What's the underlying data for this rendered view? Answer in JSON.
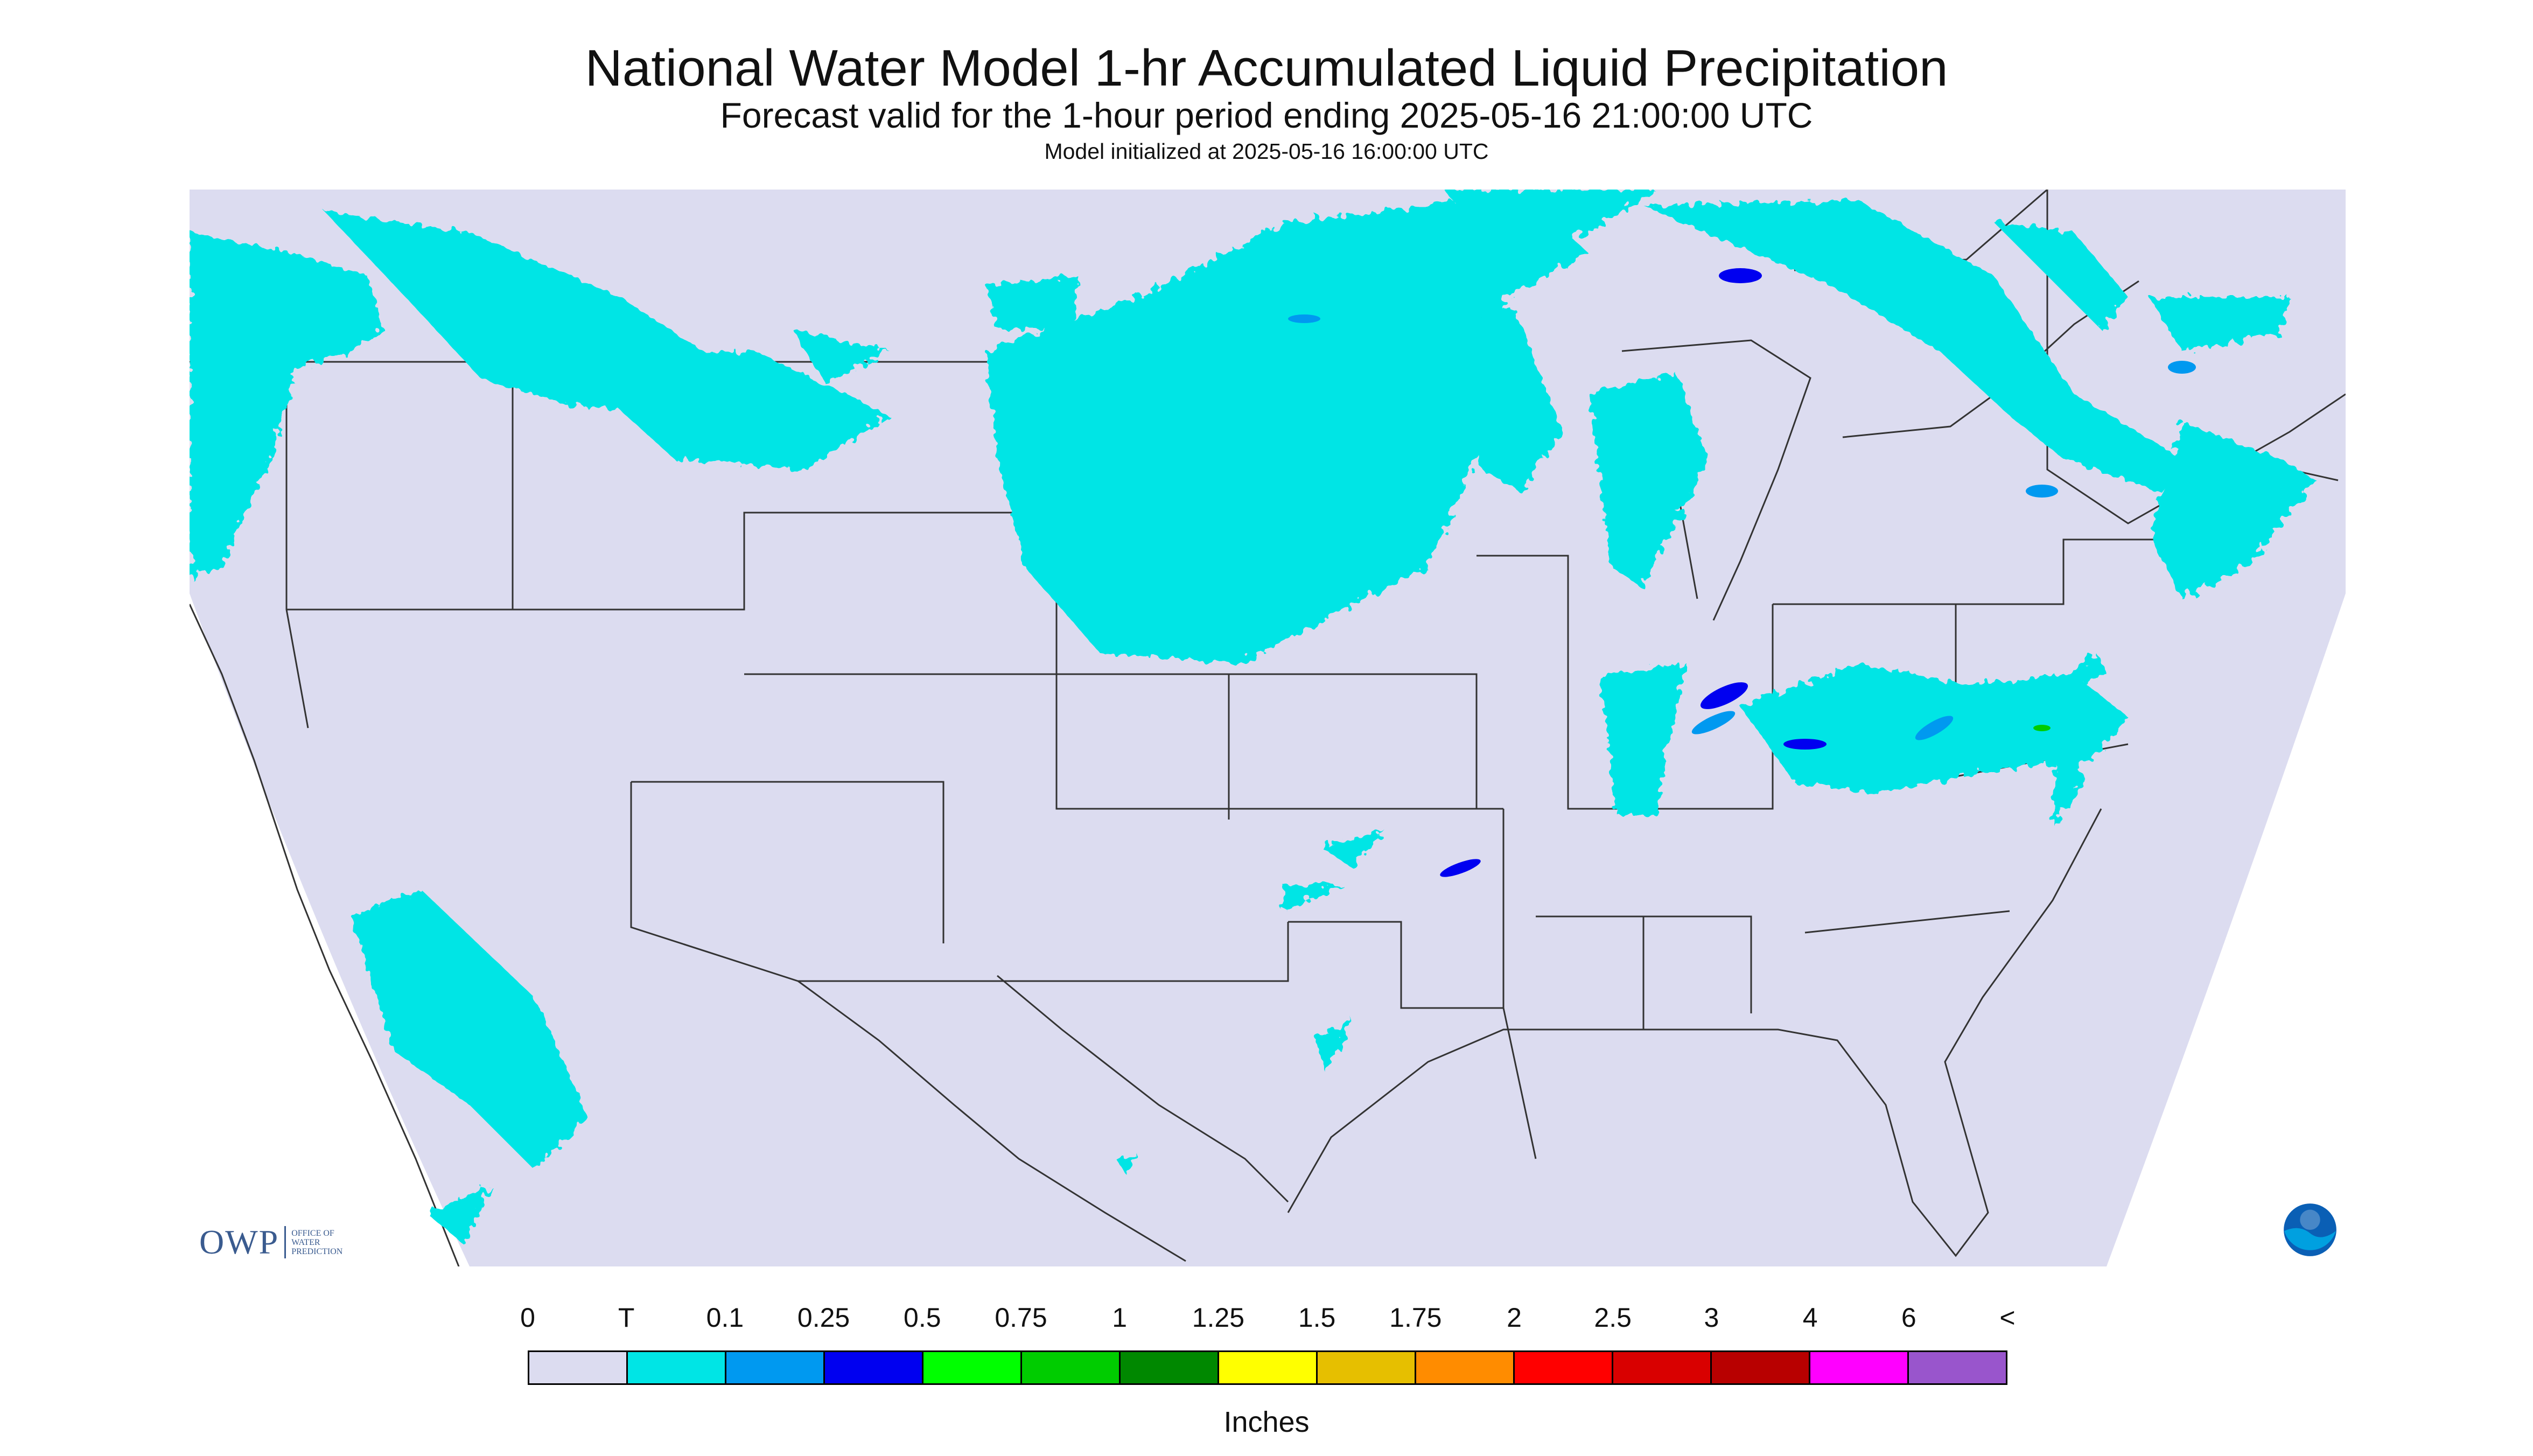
{
  "title": "National Water Model 1-hr Accumulated Liquid Precipitation",
  "subtitle": "Forecast valid for the 1-hour period ending 2025-05-16 21:00:00 UTC",
  "init_line": "Model initialized at 2025-05-16 16:00:00 UTC",
  "legend": {
    "labels": [
      "0",
      "T",
      "0.1",
      "0.25",
      "0.5",
      "0.75",
      "1",
      "1.25",
      "1.5",
      "1.75",
      "2",
      "2.5",
      "3",
      "4",
      "6",
      "<"
    ],
    "colors": [
      "#dcdcf0",
      "#00e5e5",
      "#0099f0",
      "#0000f0",
      "#00ff00",
      "#00cc00",
      "#008800",
      "#ffff00",
      "#e6bf00",
      "#ff8c00",
      "#ff0000",
      "#d90000",
      "#b80000",
      "#ff00ff",
      "#9955cc"
    ],
    "units": "Inches"
  },
  "map": {
    "background_color": "#dcdcf0",
    "outside_color": "#ffffff"
  },
  "logos": {
    "owp_word": "OWP",
    "owp_tagline": [
      "OFFICE OF",
      "WATER",
      "PREDICTION"
    ],
    "noaa_word": "NOAA"
  }
}
